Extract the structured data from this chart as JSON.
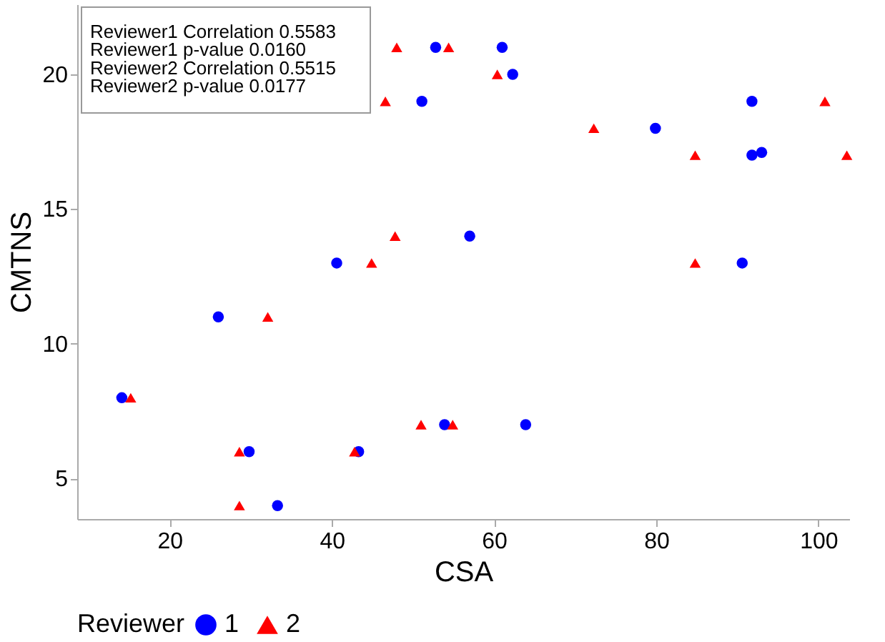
{
  "chart_data": {
    "type": "scatter",
    "xlabel": "CSA",
    "ylabel": "CMTNS",
    "legend_title": "Reviewer",
    "legend": "bottom",
    "grid": false,
    "xlim": [
      8.6,
      103.8
    ],
    "xticks": [
      20,
      40,
      60,
      80,
      100
    ],
    "ylim": [
      3.5,
      22.6
    ],
    "yticks": [
      5,
      10,
      15,
      20
    ],
    "annotations": [
      "Reviewer1 Correlation 0.5583",
      "Reviewer1 p-value 0.0160",
      "Reviewer2 Correlation 0.5515",
      "Reviewer2 p-value 0.0177"
    ],
    "series": [
      {
        "name": "1",
        "color": "#0000ff",
        "marker": "circle",
        "x": [
          14.1,
          26.0,
          29.8,
          33.3,
          40.6,
          43.3,
          51.1,
          52.8,
          53.9,
          57.0,
          61.0,
          62.3,
          63.9,
          79.9,
          90.6,
          91.8,
          91.8,
          93.0
        ],
        "values": [
          8,
          11,
          6,
          4,
          13,
          6,
          19,
          21,
          7,
          14,
          21,
          20,
          7,
          18,
          13,
          19,
          17,
          17.1
        ]
      },
      {
        "name": "2",
        "color": "#ff0000",
        "marker": "triangle",
        "x": [
          15.2,
          28.6,
          28.6,
          32.1,
          42.8,
          44.9,
          47.8,
          46.6,
          48.0,
          51.0,
          54.4,
          54.9,
          60.4,
          72.3,
          84.8,
          84.8,
          100.8,
          103.5
        ],
        "values": [
          8,
          6,
          4,
          11,
          6,
          13,
          14,
          19,
          21,
          7,
          21,
          7,
          20,
          18,
          17,
          13,
          19,
          17
        ]
      }
    ]
  }
}
